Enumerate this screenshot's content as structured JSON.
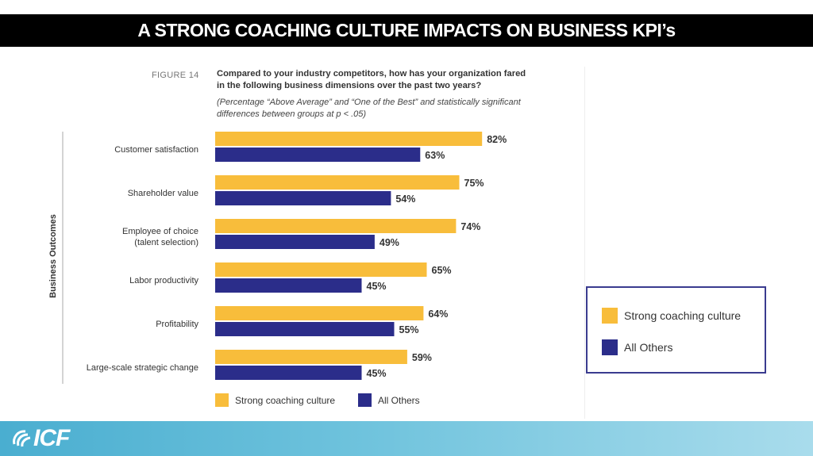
{
  "slide": {
    "title": "A STRONG COACHING CULTURE IMPACTS ON BUSINESS KPI’s",
    "figure_label": "FIGURE 14",
    "question": "Compared to your industry competitors, how has your organization fared in the following business dimensions over the past two years?",
    "note": "(Percentage “Above Average” and “One of the Best” and statistically significant differences between groups at p < .05)",
    "logo_text": "ICF"
  },
  "legend_box": {
    "items": [
      {
        "label": "Strong coaching culture",
        "color": "#f8bd3b"
      },
      {
        "label": "All Others",
        "color": "#2b2d8a"
      }
    ]
  },
  "chart_data": {
    "type": "bar",
    "orientation": "horizontal",
    "ylabel": "Business Outcomes",
    "categories": [
      "Customer satisfaction",
      "Shareholder value",
      "Employee of choice\n(talent selection)",
      "Labor productivity",
      "Profitability",
      "Large-scale strategic change"
    ],
    "series": [
      {
        "name": "Strong coaching culture",
        "color": "#f8bd3b",
        "values": [
          82,
          75,
          74,
          65,
          64,
          59
        ]
      },
      {
        "name": "All Others",
        "color": "#2b2d8a",
        "values": [
          63,
          54,
          49,
          45,
          55,
          45
        ]
      }
    ],
    "value_suffix": "%",
    "xlim": [
      0,
      100
    ],
    "grid": false,
    "legend": "bottom"
  }
}
